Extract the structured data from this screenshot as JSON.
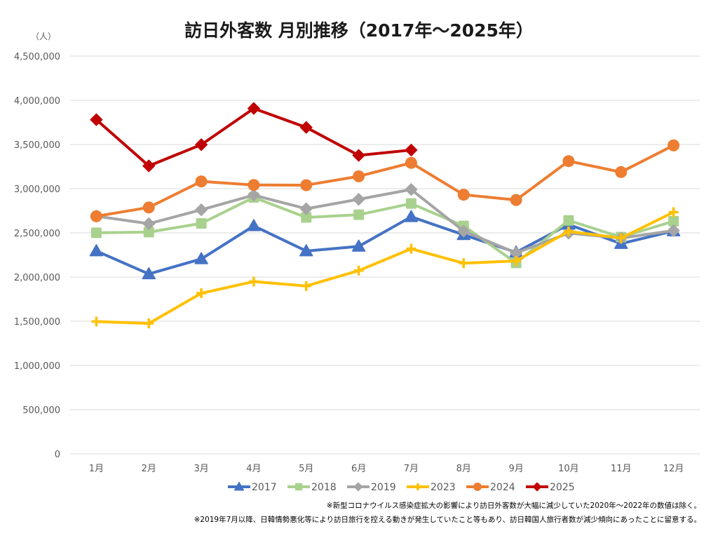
{
  "chart_data": {
    "type": "line",
    "title": "訪日外客数 月別推移（2017年～2025年）",
    "unit_label": "（人）",
    "xlabel": "",
    "ylabel": "（人）",
    "ylim": [
      0,
      4500000
    ],
    "yticks": [
      0,
      500000,
      1000000,
      1500000,
      2000000,
      2500000,
      3000000,
      3500000,
      4000000,
      4500000
    ],
    "ytick_labels": [
      "0",
      "500,000",
      "1,000,000",
      "1,500,000",
      "2,000,000",
      "2,500,000",
      "3,000,000",
      "3,500,000",
      "4,000,000",
      "4,500,000"
    ],
    "categories": [
      "1月",
      "2月",
      "3月",
      "4月",
      "5月",
      "6月",
      "7月",
      "8月",
      "9月",
      "10月",
      "11月",
      "12月"
    ],
    "grid": true,
    "legend_position": "bottom",
    "series": [
      {
        "name": "2017",
        "color": "#4472C4",
        "marker": "triangle",
        "values": [
          2295000,
          2035000,
          2205000,
          2579000,
          2295000,
          2347000,
          2682000,
          2478000,
          2280000,
          2595000,
          2378000,
          2521000
        ]
      },
      {
        "name": "2018",
        "color": "#A9D18E",
        "marker": "square",
        "values": [
          2501000,
          2509000,
          2607000,
          2901000,
          2675000,
          2705000,
          2832000,
          2578000,
          2160000,
          2641000,
          2452000,
          2632000
        ]
      },
      {
        "name": "2019",
        "color": "#A5A5A5",
        "marker": "diamond",
        "values": [
          2689000,
          2604000,
          2761000,
          2927000,
          2773000,
          2880000,
          2991000,
          2520000,
          2273000,
          2497000,
          2441000,
          2526000
        ]
      },
      {
        "name": "2023",
        "color": "#FFC000",
        "marker": "plus",
        "values": [
          1497000,
          1475000,
          1817000,
          1949000,
          1899000,
          2073000,
          2320000,
          2157000,
          2183000,
          2517000,
          2441000,
          2734000
        ]
      },
      {
        "name": "2024",
        "color": "#ED7D31",
        "marker": "circle",
        "values": [
          2688000,
          2788000,
          3082000,
          3042000,
          3040000,
          3140000,
          3292000,
          2932000,
          2872000,
          3312000,
          3188000,
          3490000
        ]
      },
      {
        "name": "2025",
        "color": "#C00000",
        "marker": "diamond",
        "values": [
          3781000,
          3258000,
          3498000,
          3908000,
          3693000,
          3377000,
          3437000,
          null,
          null,
          null,
          null,
          null
        ]
      }
    ],
    "notes": [
      "※新型コロナウイルス感染症拡大の影響により訪日外客数が大幅に減少していた2020年～2022年の数値は除く。",
      "※2019年7月以降、日韓情勢悪化等により訪日旅行を控える動きが発生していたこと等もあり、訪日韓国人旅行者数が減少傾向にあったことに留意する。"
    ]
  }
}
